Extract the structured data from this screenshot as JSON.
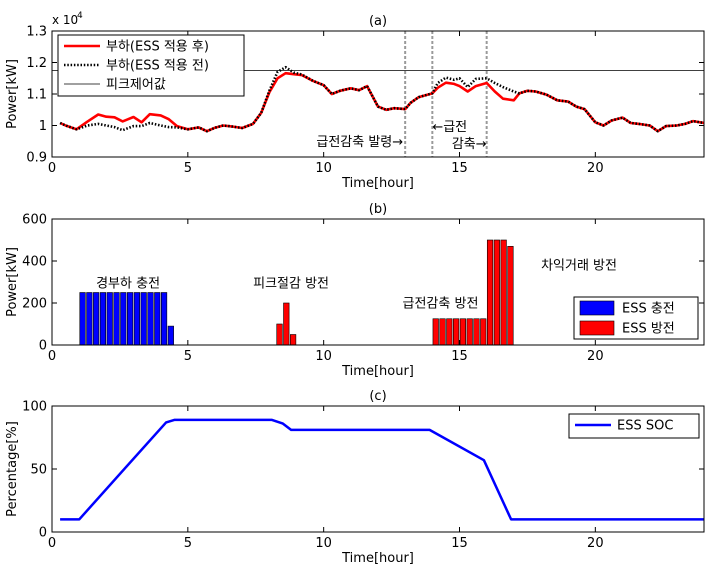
{
  "chart_data": [
    {
      "type": "line",
      "panel_label": "(a)",
      "xlabel": "Time[hour]",
      "ylabel": "Power[kW]",
      "y_exponent": "x 10",
      "y_exponent_power": "4",
      "xlim": [
        0,
        24
      ],
      "ylim": [
        0.9,
        1.3
      ],
      "xticks": [
        "0",
        "5",
        "10",
        "15",
        "20"
      ],
      "yticks": [
        "0.9",
        "1",
        "1.1",
        "1.2",
        "1.3"
      ],
      "grid": false,
      "legend_position": "top-left",
      "annotations": [
        {
          "text": "급전감축 발령→",
          "x": 13.0
        },
        {
          "text": "←급전",
          "x": 14.0
        },
        {
          "text": "감축→",
          "x": 16.0
        }
      ],
      "series": [
        {
          "name": "부하(ESS 적용 후)",
          "color": "#ff0000",
          "x": [
            0.3,
            0.5,
            0.9,
            1.3,
            1.7,
            2.0,
            2.3,
            2.6,
            3.0,
            3.3,
            3.6,
            4.0,
            4.3,
            4.6,
            5.0,
            5.4,
            5.7,
            6.0,
            6.3,
            6.6,
            7.0,
            7.4,
            7.7,
            8.0,
            8.3,
            8.6,
            8.9,
            9.2,
            9.6,
            10.0,
            10.3,
            10.6,
            11.0,
            11.3,
            11.6,
            12.0,
            12.3,
            12.6,
            13.0,
            13.2,
            13.5,
            14.0,
            14.2,
            14.5,
            14.8,
            15.0,
            15.3,
            15.6,
            16.0,
            16.3,
            16.6,
            17.0,
            17.2,
            17.5,
            17.8,
            18.2,
            18.6,
            19.0,
            19.3,
            19.6,
            20.0,
            20.3,
            20.6,
            21.0,
            21.3,
            21.6,
            22.0,
            22.3,
            22.6,
            23.0,
            23.3,
            23.6,
            24.0
          ],
          "values": [
            1.008,
            1.0,
            0.988,
            1.012,
            1.035,
            1.028,
            1.026,
            1.013,
            1.027,
            1.01,
            1.036,
            1.032,
            1.02,
            0.998,
            0.988,
            0.994,
            0.982,
            0.993,
            1.0,
            0.997,
            0.992,
            1.005,
            1.04,
            1.105,
            1.15,
            1.166,
            1.163,
            1.16,
            1.142,
            1.128,
            1.1,
            1.11,
            1.118,
            1.112,
            1.125,
            1.06,
            1.05,
            1.055,
            1.052,
            1.072,
            1.09,
            1.102,
            1.12,
            1.136,
            1.132,
            1.125,
            1.108,
            1.125,
            1.135,
            1.108,
            1.085,
            1.08,
            1.102,
            1.11,
            1.108,
            1.098,
            1.08,
            1.076,
            1.06,
            1.052,
            1.01,
            1.0,
            1.016,
            1.025,
            1.008,
            1.005,
            1.0,
            0.982,
            0.998,
            1.0,
            1.005,
            1.014,
            1.008
          ]
        },
        {
          "name": "부하(ESS 적용 전)",
          "color": "#000000",
          "x": [
            0.3,
            0.5,
            0.9,
            1.3,
            1.7,
            2.0,
            2.3,
            2.6,
            3.0,
            3.3,
            3.6,
            4.0,
            4.3,
            4.6,
            5.0,
            5.4,
            5.7,
            6.0,
            6.3,
            6.6,
            7.0,
            7.4,
            7.7,
            8.0,
            8.3,
            8.6,
            8.9,
            9.2,
            9.6,
            10.0,
            10.3,
            10.6,
            11.0,
            11.3,
            11.6,
            12.0,
            12.3,
            12.6,
            13.0,
            13.2,
            13.5,
            14.0,
            14.2,
            14.5,
            14.8,
            15.0,
            15.3,
            15.6,
            16.0,
            16.3,
            16.6,
            17.0,
            17.2,
            17.5,
            17.8,
            18.2,
            18.6,
            19.0,
            19.3,
            19.6,
            20.0,
            20.3,
            20.6,
            21.0,
            21.3,
            21.6,
            22.0,
            22.3,
            22.6,
            23.0,
            23.3,
            23.6,
            24.0
          ],
          "values": [
            1.008,
            1.0,
            0.988,
            1.0,
            1.005,
            1.0,
            0.995,
            0.985,
            0.998,
            0.998,
            1.008,
            1.0,
            0.995,
            0.994,
            0.988,
            0.994,
            0.982,
            0.993,
            1.0,
            0.997,
            0.992,
            1.005,
            1.04,
            1.11,
            1.17,
            1.185,
            1.168,
            1.162,
            1.142,
            1.128,
            1.1,
            1.11,
            1.118,
            1.112,
            1.125,
            1.06,
            1.05,
            1.055,
            1.052,
            1.072,
            1.09,
            1.102,
            1.135,
            1.152,
            1.145,
            1.15,
            1.122,
            1.148,
            1.15,
            1.135,
            1.122,
            1.108,
            1.102,
            1.11,
            1.108,
            1.098,
            1.08,
            1.076,
            1.06,
            1.052,
            1.01,
            1.0,
            1.016,
            1.025,
            1.008,
            1.005,
            1.0,
            0.982,
            0.998,
            1.0,
            1.005,
            1.014,
            1.008
          ]
        },
        {
          "name": "피크제어값",
          "color": "#000000",
          "x": [
            0,
            24
          ],
          "values": [
            1.175,
            1.175
          ]
        }
      ],
      "vlines": [
        13.0,
        14.0,
        16.0
      ]
    },
    {
      "type": "bar",
      "panel_label": "(b)",
      "xlabel": "Time[hour]",
      "ylabel": "Power[kW]",
      "xlim": [
        0,
        24
      ],
      "ylim": [
        0,
        600
      ],
      "xticks": [
        "0",
        "5",
        "10",
        "15",
        "20"
      ],
      "yticks": [
        "0",
        "200",
        "400",
        "600"
      ],
      "grid": false,
      "legend_position": "right",
      "annotations": [
        {
          "text": "경부하 충전",
          "x": 2.8,
          "y": 245
        },
        {
          "text": "피크절감 방전",
          "x": 8.8,
          "y": 245
        },
        {
          "text": "급전감축 방전",
          "x": 14.3,
          "y": 150
        },
        {
          "text": "차익거래 방전",
          "x": 19.4,
          "y": 330
        }
      ],
      "series": [
        {
          "name": "ESS 충전",
          "color": "#0000ff",
          "x": [
            1.125,
            1.375,
            1.625,
            1.875,
            2.125,
            2.375,
            2.625,
            2.875,
            3.125,
            3.375,
            3.625,
            3.875,
            4.125,
            4.375
          ],
          "values": [
            250,
            250,
            250,
            250,
            250,
            250,
            250,
            250,
            250,
            250,
            250,
            250,
            250,
            90
          ]
        },
        {
          "name": "ESS 방전",
          "color": "#ff0000",
          "x": [
            8.375,
            8.625,
            8.875,
            14.125,
            14.375,
            14.625,
            14.875,
            15.125,
            15.375,
            15.625,
            15.875,
            16.125,
            16.375,
            16.625,
            16.875
          ],
          "values": [
            100,
            200,
            50,
            125,
            125,
            125,
            125,
            125,
            125,
            125,
            125,
            500,
            500,
            500,
            470
          ]
        }
      ]
    },
    {
      "type": "line",
      "panel_label": "(c)",
      "xlabel": "Time[hour]",
      "ylabel": "Percentage[%]",
      "xlim": [
        0,
        24
      ],
      "ylim": [
        0,
        100
      ],
      "xticks": [
        "0",
        "5",
        "10",
        "15",
        "20"
      ],
      "yticks": [
        "0",
        "50",
        "100"
      ],
      "grid": false,
      "legend_position": "top-right",
      "series": [
        {
          "name": "ESS SOC",
          "color": "#0000ff",
          "x": [
            0.3,
            1.0,
            4.2,
            4.5,
            8.1,
            8.5,
            8.8,
            13.9,
            15.9,
            16.9,
            24.0
          ],
          "values": [
            10,
            10,
            87,
            89,
            89,
            86,
            81,
            81,
            57,
            10,
            10
          ]
        }
      ]
    }
  ]
}
